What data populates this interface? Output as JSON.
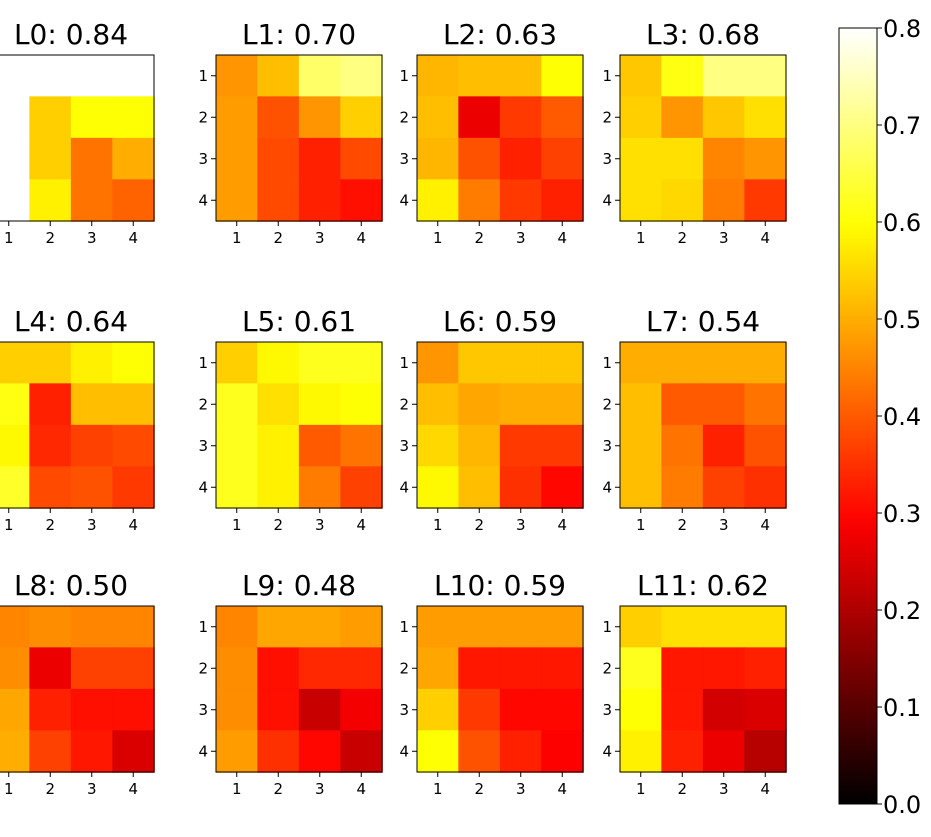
{
  "chart_data": {
    "type": "heatmap",
    "colormap": "hot",
    "vmin": 0.0,
    "vmax": 0.8,
    "x_tick_labels": [
      "1",
      "2",
      "3",
      "4"
    ],
    "y_tick_labels": [
      "1",
      "2",
      "3",
      "4"
    ],
    "colorbar": {
      "ticks": [
        "0.0",
        "0.1",
        "0.2",
        "0.3",
        "0.4",
        "0.5",
        "0.6",
        "0.7",
        "0.8"
      ]
    },
    "panels": [
      {
        "title": "L0: 0.84",
        "matrix": [
          [
            0.85,
            0.85,
            0.85,
            0.85
          ],
          [
            0.85,
            0.54,
            0.6,
            0.6
          ],
          [
            0.85,
            0.54,
            0.43,
            0.5
          ],
          [
            0.85,
            0.58,
            0.43,
            0.41
          ]
        ]
      },
      {
        "title": "L1: 0.70",
        "matrix": [
          [
            0.47,
            0.52,
            0.68,
            0.7
          ],
          [
            0.48,
            0.39,
            0.47,
            0.54
          ],
          [
            0.48,
            0.38,
            0.33,
            0.38
          ],
          [
            0.48,
            0.38,
            0.33,
            0.31
          ]
        ]
      },
      {
        "title": "L2: 0.63",
        "matrix": [
          [
            0.51,
            0.52,
            0.52,
            0.6
          ],
          [
            0.52,
            0.27,
            0.36,
            0.4
          ],
          [
            0.51,
            0.39,
            0.33,
            0.37
          ],
          [
            0.58,
            0.44,
            0.36,
            0.33
          ]
        ]
      },
      {
        "title": "L3: 0.68",
        "matrix": [
          [
            0.53,
            0.61,
            0.7,
            0.7
          ],
          [
            0.54,
            0.47,
            0.53,
            0.56
          ],
          [
            0.56,
            0.56,
            0.45,
            0.47
          ],
          [
            0.56,
            0.55,
            0.44,
            0.36
          ]
        ]
      },
      {
        "title": "L4: 0.64",
        "matrix": [
          [
            0.54,
            0.54,
            0.58,
            0.6
          ],
          [
            0.61,
            0.33,
            0.52,
            0.52
          ],
          [
            0.59,
            0.34,
            0.37,
            0.38
          ],
          [
            0.63,
            0.38,
            0.39,
            0.36
          ]
        ]
      },
      {
        "title": "L5: 0.61",
        "matrix": [
          [
            0.54,
            0.59,
            0.62,
            0.62
          ],
          [
            0.62,
            0.56,
            0.59,
            0.6
          ],
          [
            0.62,
            0.58,
            0.4,
            0.43
          ],
          [
            0.62,
            0.58,
            0.44,
            0.37
          ]
        ]
      },
      {
        "title": "L6: 0.59",
        "matrix": [
          [
            0.47,
            0.53,
            0.53,
            0.53
          ],
          [
            0.52,
            0.49,
            0.5,
            0.5
          ],
          [
            0.55,
            0.51,
            0.36,
            0.36
          ],
          [
            0.59,
            0.52,
            0.35,
            0.3
          ]
        ]
      },
      {
        "title": "L7: 0.54",
        "matrix": [
          [
            0.5,
            0.5,
            0.5,
            0.5
          ],
          [
            0.52,
            0.4,
            0.4,
            0.43
          ],
          [
            0.52,
            0.43,
            0.33,
            0.39
          ],
          [
            0.52,
            0.44,
            0.37,
            0.35
          ]
        ]
      },
      {
        "title": "L8: 0.50",
        "matrix": [
          [
            0.45,
            0.46,
            0.45,
            0.45
          ],
          [
            0.46,
            0.27,
            0.37,
            0.37
          ],
          [
            0.49,
            0.33,
            0.31,
            0.31
          ],
          [
            0.5,
            0.37,
            0.32,
            0.25
          ]
        ]
      },
      {
        "title": "L9: 0.48",
        "matrix": [
          [
            0.45,
            0.49,
            0.49,
            0.48
          ],
          [
            0.46,
            0.31,
            0.34,
            0.34
          ],
          [
            0.46,
            0.31,
            0.23,
            0.28
          ],
          [
            0.48,
            0.35,
            0.3,
            0.23
          ]
        ]
      },
      {
        "title": "L10: 0.59",
        "matrix": [
          [
            0.48,
            0.48,
            0.48,
            0.48
          ],
          [
            0.49,
            0.32,
            0.32,
            0.32
          ],
          [
            0.54,
            0.36,
            0.3,
            0.3
          ],
          [
            0.6,
            0.39,
            0.33,
            0.29
          ]
        ]
      },
      {
        "title": "L11: 0.62",
        "matrix": [
          [
            0.54,
            0.56,
            0.56,
            0.56
          ],
          [
            0.62,
            0.32,
            0.32,
            0.33
          ],
          [
            0.6,
            0.32,
            0.24,
            0.25
          ],
          [
            0.58,
            0.33,
            0.27,
            0.21
          ]
        ]
      }
    ]
  }
}
